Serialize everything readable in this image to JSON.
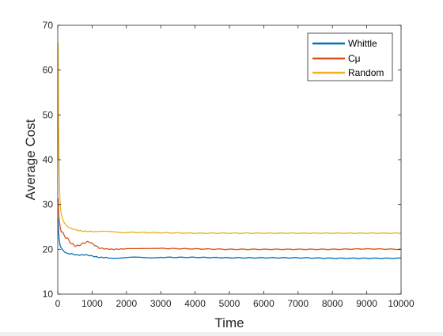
{
  "chart_data": {
    "type": "line",
    "title": "",
    "xlabel": "Time",
    "ylabel": "Average Cost",
    "xlim": [
      0,
      10000
    ],
    "ylim": [
      10,
      70
    ],
    "xticks": [
      0,
      1000,
      2000,
      3000,
      4000,
      5000,
      6000,
      7000,
      8000,
      9000,
      10000
    ],
    "yticks": [
      10,
      20,
      30,
      40,
      50,
      60,
      70
    ],
    "grid": false,
    "legend_position": "top-right",
    "series": [
      {
        "name": "Whittle",
        "color": "#0072BD",
        "x": [
          0,
          10,
          20,
          40,
          70,
          100,
          150,
          200,
          300,
          400,
          500,
          600,
          800,
          1000,
          1200,
          1500,
          2000,
          2500,
          3000,
          4000,
          5000,
          6000,
          7000,
          8000,
          9000,
          10000
        ],
        "y": [
          27,
          26,
          24,
          22,
          21,
          20.3,
          19.8,
          19.4,
          19.0,
          19.0,
          18.8,
          18.7,
          18.8,
          18.5,
          18.2,
          18.1,
          18.1,
          18.2,
          18.2,
          18.2,
          18.1,
          18.1,
          18.1,
          18.0,
          18.0,
          18.0
        ]
      },
      {
        "name": "Cμ",
        "color": "#D95319",
        "x": [
          0,
          10,
          20,
          40,
          70,
          100,
          150,
          200,
          300,
          400,
          500,
          600,
          700,
          800,
          900,
          1000,
          1100,
          1200,
          1400,
          1600,
          2000,
          2500,
          3000,
          4000,
          5000,
          6000,
          7000,
          8000,
          9000,
          10000
        ],
        "y": [
          30,
          31,
          29,
          27,
          25,
          24.2,
          23.5,
          23.0,
          22.2,
          21.3,
          20.8,
          20.8,
          21.2,
          21.5,
          21.7,
          21.3,
          20.8,
          20.3,
          20.1,
          20.0,
          20.1,
          20.2,
          20.2,
          20.1,
          20.0,
          20.0,
          20.0,
          20.0,
          20.1,
          20.0
        ]
      },
      {
        "name": "Random",
        "color": "#EDB120",
        "x": [
          0,
          5,
          10,
          15,
          20,
          30,
          40,
          60,
          80,
          100,
          150,
          200,
          300,
          400,
          600,
          800,
          1000,
          1500,
          2000,
          3000,
          4000,
          5000,
          6000,
          7000,
          8000,
          9000,
          10000
        ],
        "y": [
          40,
          62,
          66,
          60,
          52,
          45,
          38,
          32,
          29.5,
          28,
          26.5,
          25.8,
          25.0,
          24.6,
          24.2,
          24.0,
          24.0,
          23.9,
          23.8,
          23.7,
          23.6,
          23.6,
          23.6,
          23.6,
          23.6,
          23.6,
          23.6
        ]
      }
    ]
  }
}
